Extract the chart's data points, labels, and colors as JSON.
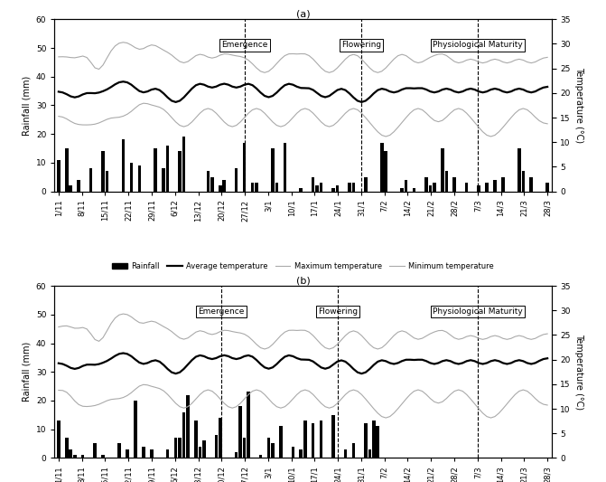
{
  "title_a": "(a)",
  "title_b": "(b)",
  "x_labels": [
    "1/11",
    "8/11",
    "15/11",
    "22/11",
    "29/11",
    "6/12",
    "13/12",
    "20/12",
    "27/12",
    "3/1",
    "10/1",
    "17/1",
    "24/1",
    "31/1",
    "7/2",
    "14/2",
    "21/2",
    "28/2",
    "7/3",
    "14/3",
    "21/3",
    "28/3"
  ],
  "ylabel_left": "Rainfall (mm)",
  "ylabel_right": "Temperature (°C)",
  "ylim_left": [
    0,
    60
  ],
  "ylim_right": [
    0,
    35
  ],
  "yticks_left": [
    0,
    10,
    20,
    30,
    40,
    50,
    60
  ],
  "yticks_right": [
    0,
    5,
    10,
    15,
    20,
    25,
    30,
    35
  ],
  "annotation_emergence": "Emergence",
  "annotation_flowering": "Flowering",
  "annotation_physmat": "Physiological Maturity",
  "emergence_idx_a": 8,
  "flowering_idx_a": 13,
  "physmat_idx_a": 18,
  "emergence_idx_b": 7,
  "flowering_idx_b": 12,
  "physmat_idx_b": 18,
  "rainfall_a": [
    11,
    0,
    15,
    2,
    0,
    4,
    0,
    0,
    8,
    0,
    0,
    14,
    7,
    0,
    0,
    0,
    18,
    0,
    10,
    0,
    9,
    0,
    0,
    0,
    15,
    0,
    8,
    16,
    0,
    0,
    14,
    19,
    0,
    0,
    0,
    0,
    0,
    7,
    5,
    0,
    2,
    4,
    0,
    0,
    8,
    0,
    17,
    0,
    3,
    3,
    0,
    0,
    0,
    15,
    3,
    0,
    17,
    0,
    0,
    0,
    1,
    0,
    0,
    5,
    2,
    3,
    0,
    0,
    1,
    2,
    0,
    0,
    3,
    3,
    0,
    0,
    5,
    0,
    0,
    0,
    17,
    14,
    0,
    0,
    0,
    1,
    4,
    0,
    1,
    0,
    0,
    5,
    2,
    3,
    0,
    15,
    7,
    0,
    5,
    0,
    0,
    3,
    0,
    0,
    2,
    0,
    3,
    0,
    4,
    0,
    5,
    0,
    0,
    0,
    15,
    7,
    0,
    5,
    0,
    0,
    0,
    3
  ],
  "rainfall_b": [
    13,
    0,
    7,
    3,
    1,
    0,
    1,
    0,
    0,
    5,
    0,
    1,
    0,
    0,
    0,
    5,
    0,
    3,
    0,
    20,
    0,
    4,
    0,
    3,
    0,
    0,
    0,
    3,
    0,
    7,
    7,
    16,
    22,
    0,
    13,
    4,
    6,
    0,
    0,
    8,
    14,
    0,
    0,
    0,
    2,
    18,
    7,
    23,
    0,
    0,
    1,
    0,
    7,
    5,
    0,
    11,
    0,
    0,
    4,
    0,
    3,
    13,
    0,
    12,
    0,
    13,
    0,
    0,
    15,
    0,
    0,
    3,
    0,
    5,
    0,
    0,
    12,
    3,
    13,
    11,
    0,
    0,
    0,
    0,
    0,
    0,
    0,
    0,
    0,
    0,
    0,
    0,
    0,
    0,
    0,
    0,
    0,
    0,
    0,
    0,
    0,
    0,
    0,
    0,
    0,
    0,
    0,
    0,
    0,
    0,
    0,
    0,
    0,
    0,
    0,
    0,
    0,
    0,
    0,
    0,
    0,
    0
  ],
  "avg_temp_a": [
    20,
    21,
    20,
    19,
    18,
    19,
    20,
    21,
    20,
    19,
    20,
    21,
    20,
    21,
    22,
    23,
    22,
    23,
    22,
    21,
    20,
    19,
    20,
    21,
    22,
    21,
    20,
    19,
    18,
    17,
    18,
    19,
    20,
    21,
    22,
    23,
    22,
    21,
    20,
    21,
    22,
    23,
    22,
    21,
    20,
    21,
    22,
    23,
    22,
    21,
    20,
    19,
    18,
    19,
    20,
    21,
    22,
    23,
    22,
    21,
    20,
    21,
    22,
    21,
    20,
    19,
    18,
    19,
    20,
    21,
    22,
    21,
    20,
    19,
    18,
    17,
    18,
    19,
    20,
    21,
    22,
    21,
    20,
    19,
    20,
    21,
    22,
    21,
    20,
    21,
    22,
    21,
    20,
    19,
    20,
    21,
    22,
    21,
    20,
    19,
    20,
    21,
    22,
    21,
    20,
    19,
    20,
    21,
    22,
    21,
    20,
    19,
    20,
    21,
    22,
    21,
    20,
    19,
    20,
    21,
    22,
    21
  ],
  "max_temp_a": [
    27,
    28,
    27,
    28,
    26,
    27,
    28,
    29,
    28,
    22,
    23,
    25,
    28,
    29,
    30,
    31,
    30,
    31,
    30,
    29,
    28,
    28,
    30,
    31,
    30,
    29,
    28,
    29,
    28,
    27,
    26,
    25,
    26,
    27,
    28,
    29,
    28,
    27,
    26,
    27,
    28,
    29,
    28,
    27,
    28,
    27,
    28,
    27,
    26,
    25,
    24,
    23,
    24,
    25,
    26,
    27,
    28,
    29,
    28,
    27,
    28,
    29,
    28,
    27,
    26,
    25,
    24,
    23,
    24,
    25,
    26,
    27,
    28,
    29,
    28,
    27,
    26,
    25,
    24,
    23,
    24,
    25,
    26,
    27,
    28,
    29,
    28,
    27,
    26,
    25,
    26,
    27,
    28,
    27,
    28,
    29,
    28,
    27,
    26,
    25,
    26,
    27,
    28,
    27,
    26,
    25,
    26,
    27,
    28,
    27,
    26,
    25,
    26,
    27,
    28,
    27,
    26,
    25,
    26,
    27,
    28,
    27
  ],
  "min_temp_a": [
    15,
    16,
    15,
    14,
    13,
    14,
    13,
    14,
    13,
    14,
    13,
    15,
    14,
    16,
    15,
    14,
    16,
    15,
    16,
    17,
    18,
    19,
    18,
    17,
    17,
    18,
    17,
    16,
    15,
    14,
    13,
    12,
    13,
    14,
    15,
    16,
    17,
    18,
    17,
    16,
    15,
    14,
    13,
    12,
    13,
    14,
    15,
    16,
    17,
    18,
    17,
    16,
    15,
    14,
    13,
    12,
    13,
    14,
    15,
    16,
    17,
    18,
    17,
    16,
    15,
    14,
    13,
    12,
    13,
    14,
    15,
    16,
    17,
    18,
    17,
    16,
    15,
    14,
    13,
    12,
    11,
    10,
    11,
    12,
    13,
    14,
    15,
    16,
    17,
    18,
    17,
    16,
    15,
    14,
    13,
    14,
    15,
    16,
    17,
    18,
    17,
    16,
    15,
    14,
    13,
    12,
    11,
    10,
    11,
    12,
    13,
    14,
    15,
    16,
    17,
    18,
    17,
    16,
    15,
    14,
    13,
    14
  ],
  "avg_temp_b": [
    19,
    20,
    19,
    18,
    17,
    18,
    19,
    20,
    19,
    18,
    19,
    20,
    19,
    20,
    21,
    22,
    21,
    22,
    21,
    20,
    19,
    18,
    19,
    20,
    21,
    20,
    19,
    18,
    17,
    16,
    17,
    18,
    19,
    20,
    21,
    22,
    21,
    20,
    19,
    20,
    21,
    22,
    21,
    20,
    19,
    20,
    21,
    22,
    21,
    20,
    19,
    18,
    17,
    18,
    19,
    20,
    21,
    22,
    21,
    20,
    19,
    20,
    21,
    20,
    19,
    18,
    17,
    18,
    19,
    20,
    21,
    20,
    19,
    18,
    17,
    16,
    17,
    18,
    19,
    20,
    21,
    20,
    19,
    18,
    19,
    20,
    21,
    20,
    19,
    20,
    21,
    20,
    19,
    18,
    19,
    20,
    21,
    20,
    19,
    18,
    19,
    20,
    21,
    20,
    19,
    18,
    19,
    20,
    21,
    20,
    19,
    18,
    19,
    20,
    21,
    20,
    19,
    18,
    19,
    20,
    21,
    20
  ],
  "max_temp_b": [
    26,
    27,
    28,
    27,
    25,
    26,
    27,
    28,
    27,
    21,
    22,
    24,
    26,
    28,
    29,
    30,
    29,
    30,
    29,
    28,
    27,
    26,
    28,
    29,
    28,
    27,
    26,
    27,
    26,
    25,
    24,
    23,
    24,
    25,
    26,
    27,
    26,
    25,
    24,
    25,
    26,
    27,
    26,
    25,
    26,
    25,
    26,
    25,
    24,
    23,
    22,
    21,
    22,
    23,
    24,
    25,
    26,
    27,
    26,
    25,
    26,
    27,
    26,
    25,
    24,
    23,
    22,
    21,
    22,
    23,
    24,
    25,
    26,
    27,
    26,
    25,
    24,
    23,
    22,
    21,
    22,
    23,
    24,
    25,
    26,
    27,
    26,
    25,
    24,
    23,
    24,
    25,
    26,
    25,
    26,
    27,
    26,
    25,
    24,
    23,
    24,
    25,
    26,
    25,
    24,
    23,
    24,
    25,
    26,
    25,
    24,
    23,
    24,
    25,
    26,
    25,
    24,
    23,
    24,
    25,
    26,
    25
  ],
  "min_temp_b": [
    13,
    15,
    14,
    13,
    11,
    10,
    10,
    11,
    10,
    11,
    10,
    12,
    11,
    13,
    12,
    11,
    13,
    12,
    13,
    14,
    15,
    16,
    15,
    14,
    14,
    15,
    14,
    13,
    12,
    11,
    10,
    9,
    10,
    11,
    12,
    13,
    14,
    15,
    14,
    13,
    12,
    11,
    10,
    9,
    10,
    11,
    12,
    13,
    14,
    15,
    14,
    13,
    12,
    11,
    10,
    9,
    10,
    11,
    12,
    13,
    14,
    15,
    14,
    13,
    12,
    11,
    10,
    9,
    10,
    11,
    12,
    13,
    14,
    15,
    14,
    13,
    12,
    11,
    10,
    9,
    8,
    7,
    8,
    9,
    10,
    11,
    12,
    13,
    14,
    15,
    14,
    13,
    12,
    11,
    10,
    11,
    12,
    13,
    14,
    15,
    14,
    13,
    12,
    11,
    10,
    9,
    8,
    7,
    8,
    9,
    10,
    11,
    12,
    13,
    14,
    15,
    14,
    13,
    12,
    11,
    10,
    11
  ],
  "line_color_avg": "#000000",
  "line_color_max": "#aaaaaa",
  "line_color_min": "#aaaaaa",
  "bar_color": "#000000"
}
